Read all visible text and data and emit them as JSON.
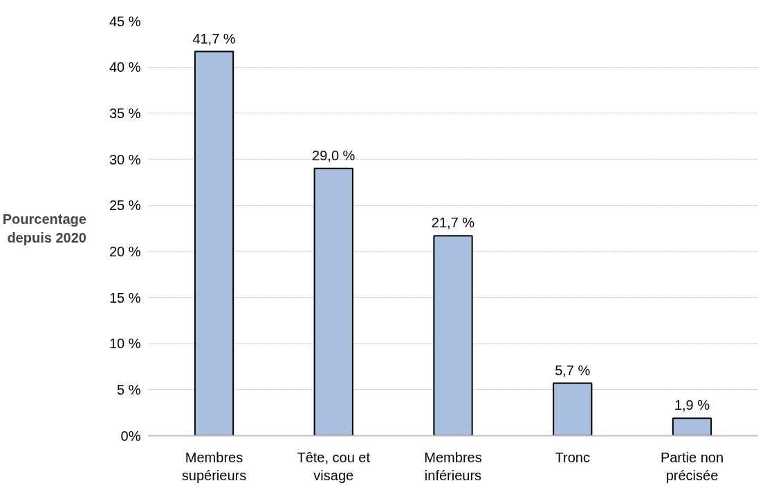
{
  "chart_data": {
    "type": "bar",
    "ylabel": "Pourcentage\ndepuis 2020",
    "categories": [
      "Membres\nsupérieurs",
      "Tête, cou et\nvisage",
      "Membres\ninférieurs",
      "Tronc",
      "Partie non\nprécisée"
    ],
    "values": [
      41.7,
      29.0,
      21.7,
      5.7,
      1.9
    ],
    "value_labels": [
      "41,7 %",
      "29,0 %",
      "21,7 %",
      "5,7 %",
      "1,9 %"
    ],
    "color": "#a9bfdf",
    "ylim": [
      0,
      45
    ],
    "yticks": [
      {
        "value": 0,
        "label": "0%"
      },
      {
        "value": 5,
        "label": "5 %"
      },
      {
        "value": 10,
        "label": "10 %"
      },
      {
        "value": 15,
        "label": "15 %"
      },
      {
        "value": 20,
        "label": "20 %"
      },
      {
        "value": 25,
        "label": "25 %"
      },
      {
        "value": 30,
        "label": "30 %"
      },
      {
        "value": 35,
        "label": "35 %"
      },
      {
        "value": 40,
        "label": "40 %"
      },
      {
        "value": 45,
        "label": "45 %"
      }
    ],
    "grid": "y"
  }
}
